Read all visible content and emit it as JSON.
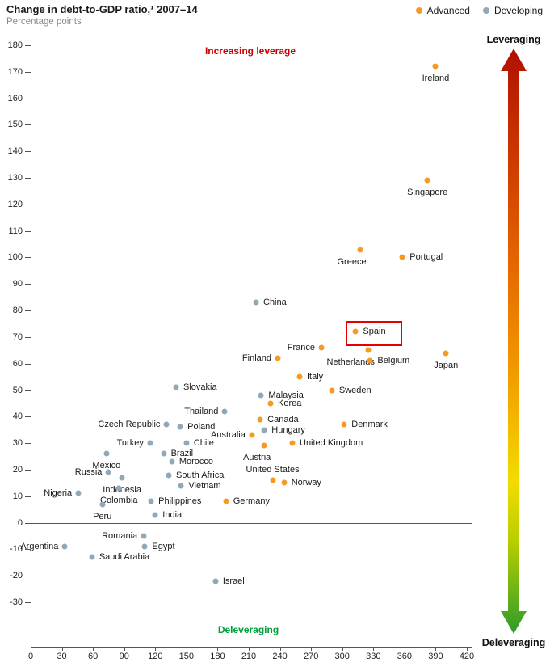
{
  "header": {
    "title": "Change in debt-to-GDP ratio,¹ 2007–14",
    "subtitle": "Percentage points",
    "legend": [
      {
        "label": "Advanced",
        "color": "#f59a23"
      },
      {
        "label": "Developing",
        "color": "#8fa9b8"
      }
    ]
  },
  "annotations": {
    "top": {
      "text": "Increasing leverage",
      "color": "#cc0000"
    },
    "bottom": {
      "text": "Deleveraging",
      "color": "#00a03c"
    }
  },
  "arrow": {
    "top_label": "Leveraging",
    "bottom_label": "Deleveraging",
    "gradient": [
      "#b01000",
      "#e66a00",
      "#f4b800",
      "#f2dc00",
      "#2d9c28"
    ]
  },
  "chart_data": {
    "type": "scatter",
    "title": "Change in debt-to-GDP ratio, 2007-14",
    "ylabel": "Percentage points",
    "xlabel": "",
    "xlim": [
      0,
      420
    ],
    "ylim": [
      -30,
      180
    ],
    "x_ticks": [
      0,
      30,
      60,
      90,
      120,
      150,
      180,
      210,
      240,
      270,
      300,
      330,
      360,
      390,
      420
    ],
    "y_ticks": [
      180,
      170,
      160,
      150,
      140,
      130,
      120,
      110,
      100,
      90,
      80,
      70,
      60,
      50,
      40,
      30,
      20,
      10,
      0,
      -10,
      -20,
      -30
    ],
    "grid": false,
    "highlight": {
      "country": "Spain",
      "box_color": "#e60000"
    },
    "series": [
      {
        "name": "Advanced",
        "color": "#f59a23",
        "points": [
          {
            "country": "Ireland",
            "x": 390,
            "y": 172,
            "label_side": "below"
          },
          {
            "country": "Singapore",
            "x": 382,
            "y": 129,
            "label_side": "below"
          },
          {
            "country": "Greece",
            "x": 317,
            "y": 103,
            "label_side": "below-left"
          },
          {
            "country": "Portugal",
            "x": 358,
            "y": 100,
            "label_side": "right"
          },
          {
            "country": "Spain",
            "x": 313,
            "y": 72,
            "label_side": "right"
          },
          {
            "country": "France",
            "x": 280,
            "y": 66,
            "label_side": "left"
          },
          {
            "country": "Netherlands",
            "x": 325,
            "y": 65,
            "label_side": "below-left"
          },
          {
            "country": "Japan",
            "x": 400,
            "y": 64,
            "label_side": "below"
          },
          {
            "country": "Finland",
            "x": 238,
            "y": 62,
            "label_side": "left"
          },
          {
            "country": "Belgium",
            "x": 327,
            "y": 61,
            "label_side": "right"
          },
          {
            "country": "Italy",
            "x": 259,
            "y": 55,
            "label_side": "right"
          },
          {
            "country": "Sweden",
            "x": 290,
            "y": 50,
            "label_side": "right"
          },
          {
            "country": "Korea",
            "x": 231,
            "y": 45,
            "label_side": "right"
          },
          {
            "country": "Canada",
            "x": 221,
            "y": 39,
            "label_side": "right"
          },
          {
            "country": "Denmark",
            "x": 302,
            "y": 37,
            "label_side": "right"
          },
          {
            "country": "Australia",
            "x": 213,
            "y": 33,
            "label_side": "left"
          },
          {
            "country": "United Kingdom",
            "x": 252,
            "y": 30,
            "label_side": "right"
          },
          {
            "country": "Austria",
            "x": 225,
            "y": 29,
            "label_side": "below-left"
          },
          {
            "country": "United States",
            "x": 233,
            "y": 16,
            "label_side": "above"
          },
          {
            "country": "Norway",
            "x": 244,
            "y": 15,
            "label_side": "right"
          },
          {
            "country": "Germany",
            "x": 188,
            "y": 8,
            "label_side": "right"
          }
        ]
      },
      {
        "name": "Developing",
        "color": "#8fa9b8",
        "points": [
          {
            "country": "China",
            "x": 217,
            "y": 83,
            "label_side": "right"
          },
          {
            "country": "Slovakia",
            "x": 140,
            "y": 51,
            "label_side": "right"
          },
          {
            "country": "Malaysia",
            "x": 222,
            "y": 48,
            "label_side": "right"
          },
          {
            "country": "Thailand",
            "x": 187,
            "y": 42,
            "label_side": "left"
          },
          {
            "country": "Czech Republic",
            "x": 131,
            "y": 37,
            "label_side": "left"
          },
          {
            "country": "Poland",
            "x": 144,
            "y": 36,
            "label_side": "right"
          },
          {
            "country": "Hungary",
            "x": 225,
            "y": 35,
            "label_side": "right"
          },
          {
            "country": "Turkey",
            "x": 115,
            "y": 30,
            "label_side": "left"
          },
          {
            "country": "Chile",
            "x": 150,
            "y": 30,
            "label_side": "right"
          },
          {
            "country": "Mexico",
            "x": 73,
            "y": 26,
            "label_side": "below"
          },
          {
            "country": "Brazil",
            "x": 128,
            "y": 26,
            "label_side": "right"
          },
          {
            "country": "Morocco",
            "x": 136,
            "y": 23,
            "label_side": "right"
          },
          {
            "country": "Russia",
            "x": 75,
            "y": 19,
            "label_side": "left"
          },
          {
            "country": "South Africa",
            "x": 133,
            "y": 18,
            "label_side": "right"
          },
          {
            "country": "Indonesia",
            "x": 88,
            "y": 17,
            "label_side": "below"
          },
          {
            "country": "Vietnam",
            "x": 145,
            "y": 14,
            "label_side": "right"
          },
          {
            "country": "Colombia",
            "x": 85,
            "y": 13,
            "label_side": "below"
          },
          {
            "country": "Nigeria",
            "x": 46,
            "y": 11,
            "label_side": "left"
          },
          {
            "country": "Philippines",
            "x": 116,
            "y": 8,
            "label_side": "right"
          },
          {
            "country": "Peru",
            "x": 69,
            "y": 7,
            "label_side": "below"
          },
          {
            "country": "India",
            "x": 120,
            "y": 3,
            "label_side": "right"
          },
          {
            "country": "Romania",
            "x": 109,
            "y": -5,
            "label_side": "left"
          },
          {
            "country": "Argentina",
            "x": 33,
            "y": -9,
            "label_side": "left"
          },
          {
            "country": "Egypt",
            "x": 110,
            "y": -9,
            "label_side": "right"
          },
          {
            "country": "Saudi Arabia",
            "x": 59,
            "y": -13,
            "label_side": "right"
          },
          {
            "country": "Israel",
            "x": 178,
            "y": -22,
            "label_side": "right"
          }
        ]
      }
    ]
  }
}
